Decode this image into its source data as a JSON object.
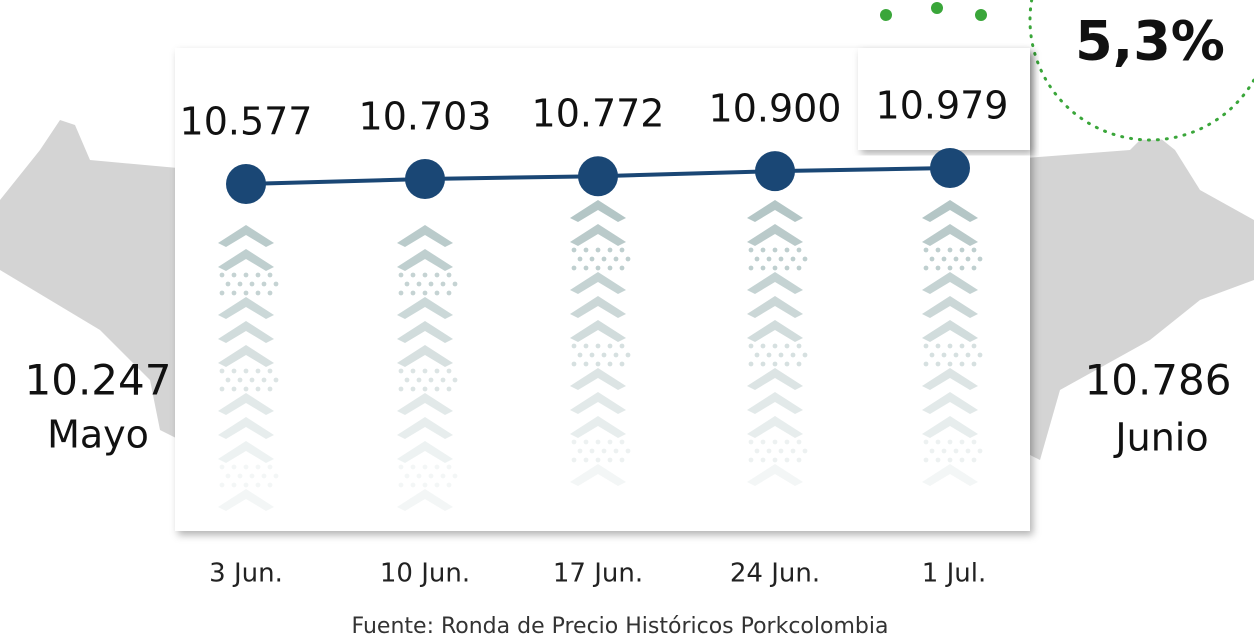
{
  "chart_data": {
    "type": "line",
    "categories": [
      "3 Jun.",
      "10 Jun.",
      "17 Jun.",
      "24 Jun.",
      "1 Jul."
    ],
    "values": [
      10577,
      10703,
      10772,
      10900,
      10979
    ],
    "value_labels": [
      "10.577",
      "10.703",
      "10.772",
      "10.900",
      "10.979"
    ],
    "color": "#1a4775",
    "left_summary": {
      "value": "10.247",
      "label": "Mayo"
    },
    "right_summary": {
      "value": "10.786",
      "label": "Junio"
    },
    "change": "5,3%",
    "source": "Fuente: Ronda de Precio Históricos Porkcolombia"
  }
}
